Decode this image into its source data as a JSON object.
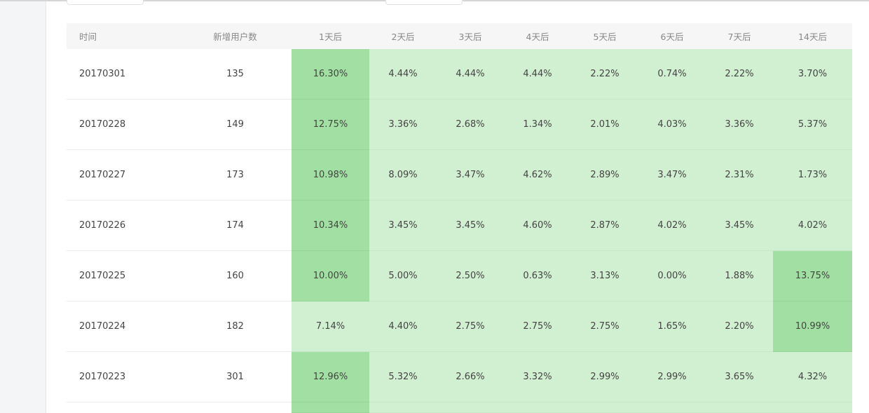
{
  "table": {
    "headers": [
      "时间",
      "新增用户数",
      "1天后",
      "2天后",
      "3天后",
      "4天后",
      "5天后",
      "6天后",
      "7天后",
      "14天后"
    ],
    "rows": [
      {
        "date": "20170301",
        "new_users": "135",
        "d1": "16.30%",
        "d2": "4.44%",
        "d3": "4.44%",
        "d4": "4.44%",
        "d5": "2.22%",
        "d6": "0.74%",
        "d7": "2.22%",
        "d14": "3.70%"
      },
      {
        "date": "20170228",
        "new_users": "149",
        "d1": "12.75%",
        "d2": "3.36%",
        "d3": "2.68%",
        "d4": "1.34%",
        "d5": "2.01%",
        "d6": "4.03%",
        "d7": "3.36%",
        "d14": "5.37%"
      },
      {
        "date": "20170227",
        "new_users": "173",
        "d1": "10.98%",
        "d2": "8.09%",
        "d3": "3.47%",
        "d4": "4.62%",
        "d5": "2.89%",
        "d6": "3.47%",
        "d7": "2.31%",
        "d14": "1.73%"
      },
      {
        "date": "20170226",
        "new_users": "174",
        "d1": "10.34%",
        "d2": "3.45%",
        "d3": "3.45%",
        "d4": "4.60%",
        "d5": "2.87%",
        "d6": "4.02%",
        "d7": "3.45%",
        "d14": "4.02%"
      },
      {
        "date": "20170225",
        "new_users": "160",
        "d1": "10.00%",
        "d2": "5.00%",
        "d3": "2.50%",
        "d4": "0.63%",
        "d5": "3.13%",
        "d6": "0.00%",
        "d7": "1.88%",
        "d14": "13.75%"
      },
      {
        "date": "20170224",
        "new_users": "182",
        "d1": "7.14%",
        "d2": "4.40%",
        "d3": "2.75%",
        "d4": "2.75%",
        "d5": "2.75%",
        "d6": "1.65%",
        "d7": "2.20%",
        "d14": "10.99%"
      },
      {
        "date": "20170223",
        "new_users": "301",
        "d1": "12.96%",
        "d2": "5.32%",
        "d3": "2.66%",
        "d4": "3.32%",
        "d5": "2.99%",
        "d6": "2.99%",
        "d7": "3.65%",
        "d14": "4.32%"
      }
    ],
    "heat_threshold_percent": 10,
    "colors": {
      "light": "#d1efd1",
      "dark": "#a2dfa2",
      "header_bg": "#f6f6f6"
    }
  }
}
